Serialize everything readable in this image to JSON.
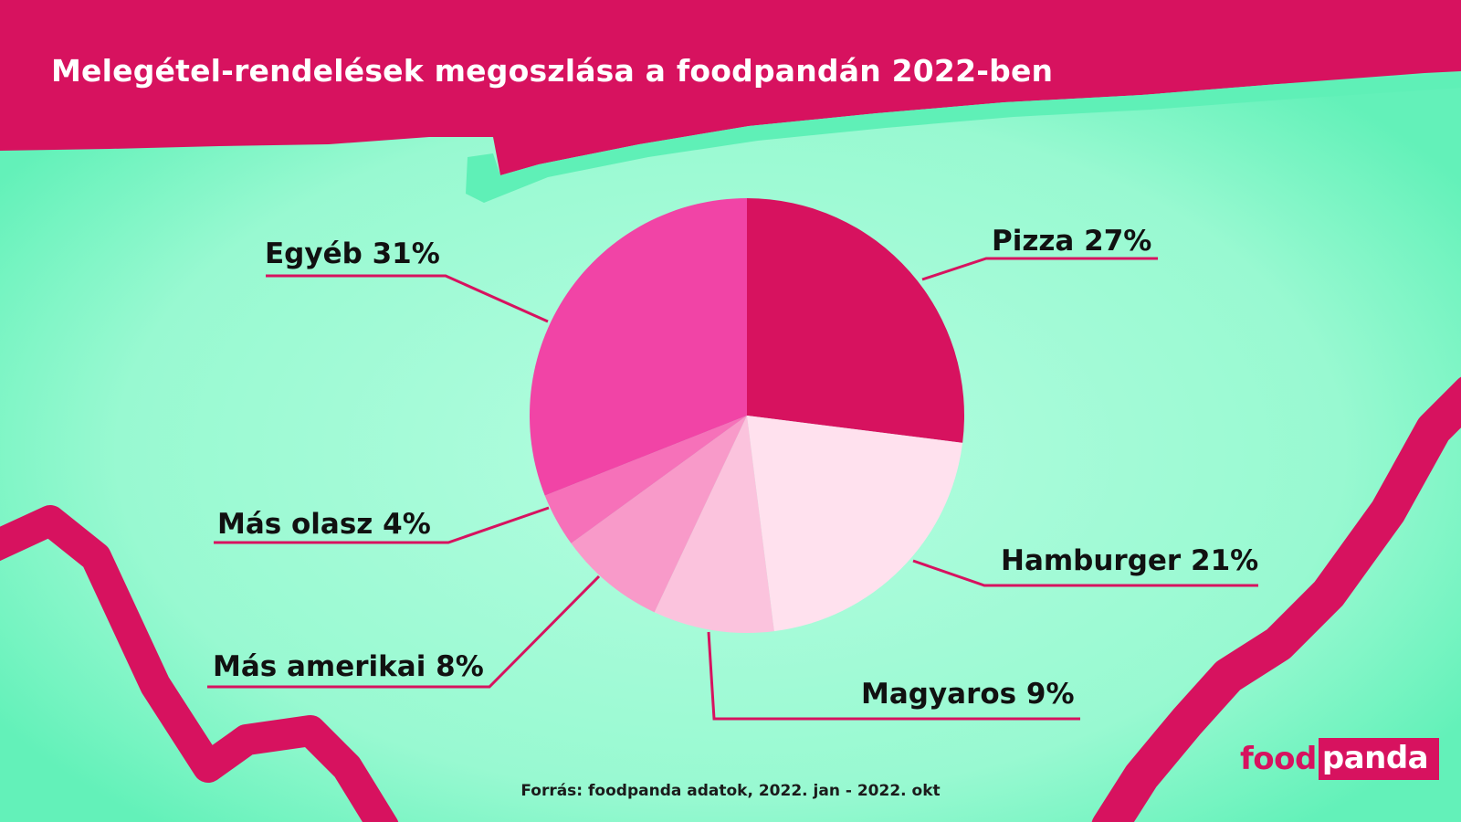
{
  "header": {
    "title": "Melegétel-rendelések megoszlása a foodpandán 2022-ben"
  },
  "footer": {
    "source": "Forrás: foodpanda adatok, 2022. jan - 2022. okt"
  },
  "logo": {
    "food": "food",
    "panda": "panda"
  },
  "colors": {
    "background": "#5ef2b8",
    "background_center": "#a9fcdc",
    "brand": "#d7125f",
    "label_text": "#111111"
  },
  "chart_data": {
    "type": "pie",
    "title": "Melegétel-rendelések megoszlása a foodpandán 2022-ben",
    "legend": "none",
    "slices": [
      {
        "label": "Pizza 27%",
        "name": "Pizza",
        "value": 27,
        "color": "#d7125f"
      },
      {
        "label": "Hamburger 21%",
        "name": "Hamburger",
        "value": 21,
        "color": "#ffe1ee"
      },
      {
        "label": "Magyaros 9%",
        "name": "Magyaros",
        "value": 9,
        "color": "#fbc3dd"
      },
      {
        "label": "Más amerikai 8%",
        "name": "Más amerikai",
        "value": 8,
        "color": "#f89ac9"
      },
      {
        "label": "Más olasz 4%",
        "name": "Más olasz",
        "value": 4,
        "color": "#f671b9"
      },
      {
        "label": "Egyéb 31%",
        "name": "Egyéb",
        "value": 31,
        "color": "#f144a6"
      }
    ]
  }
}
